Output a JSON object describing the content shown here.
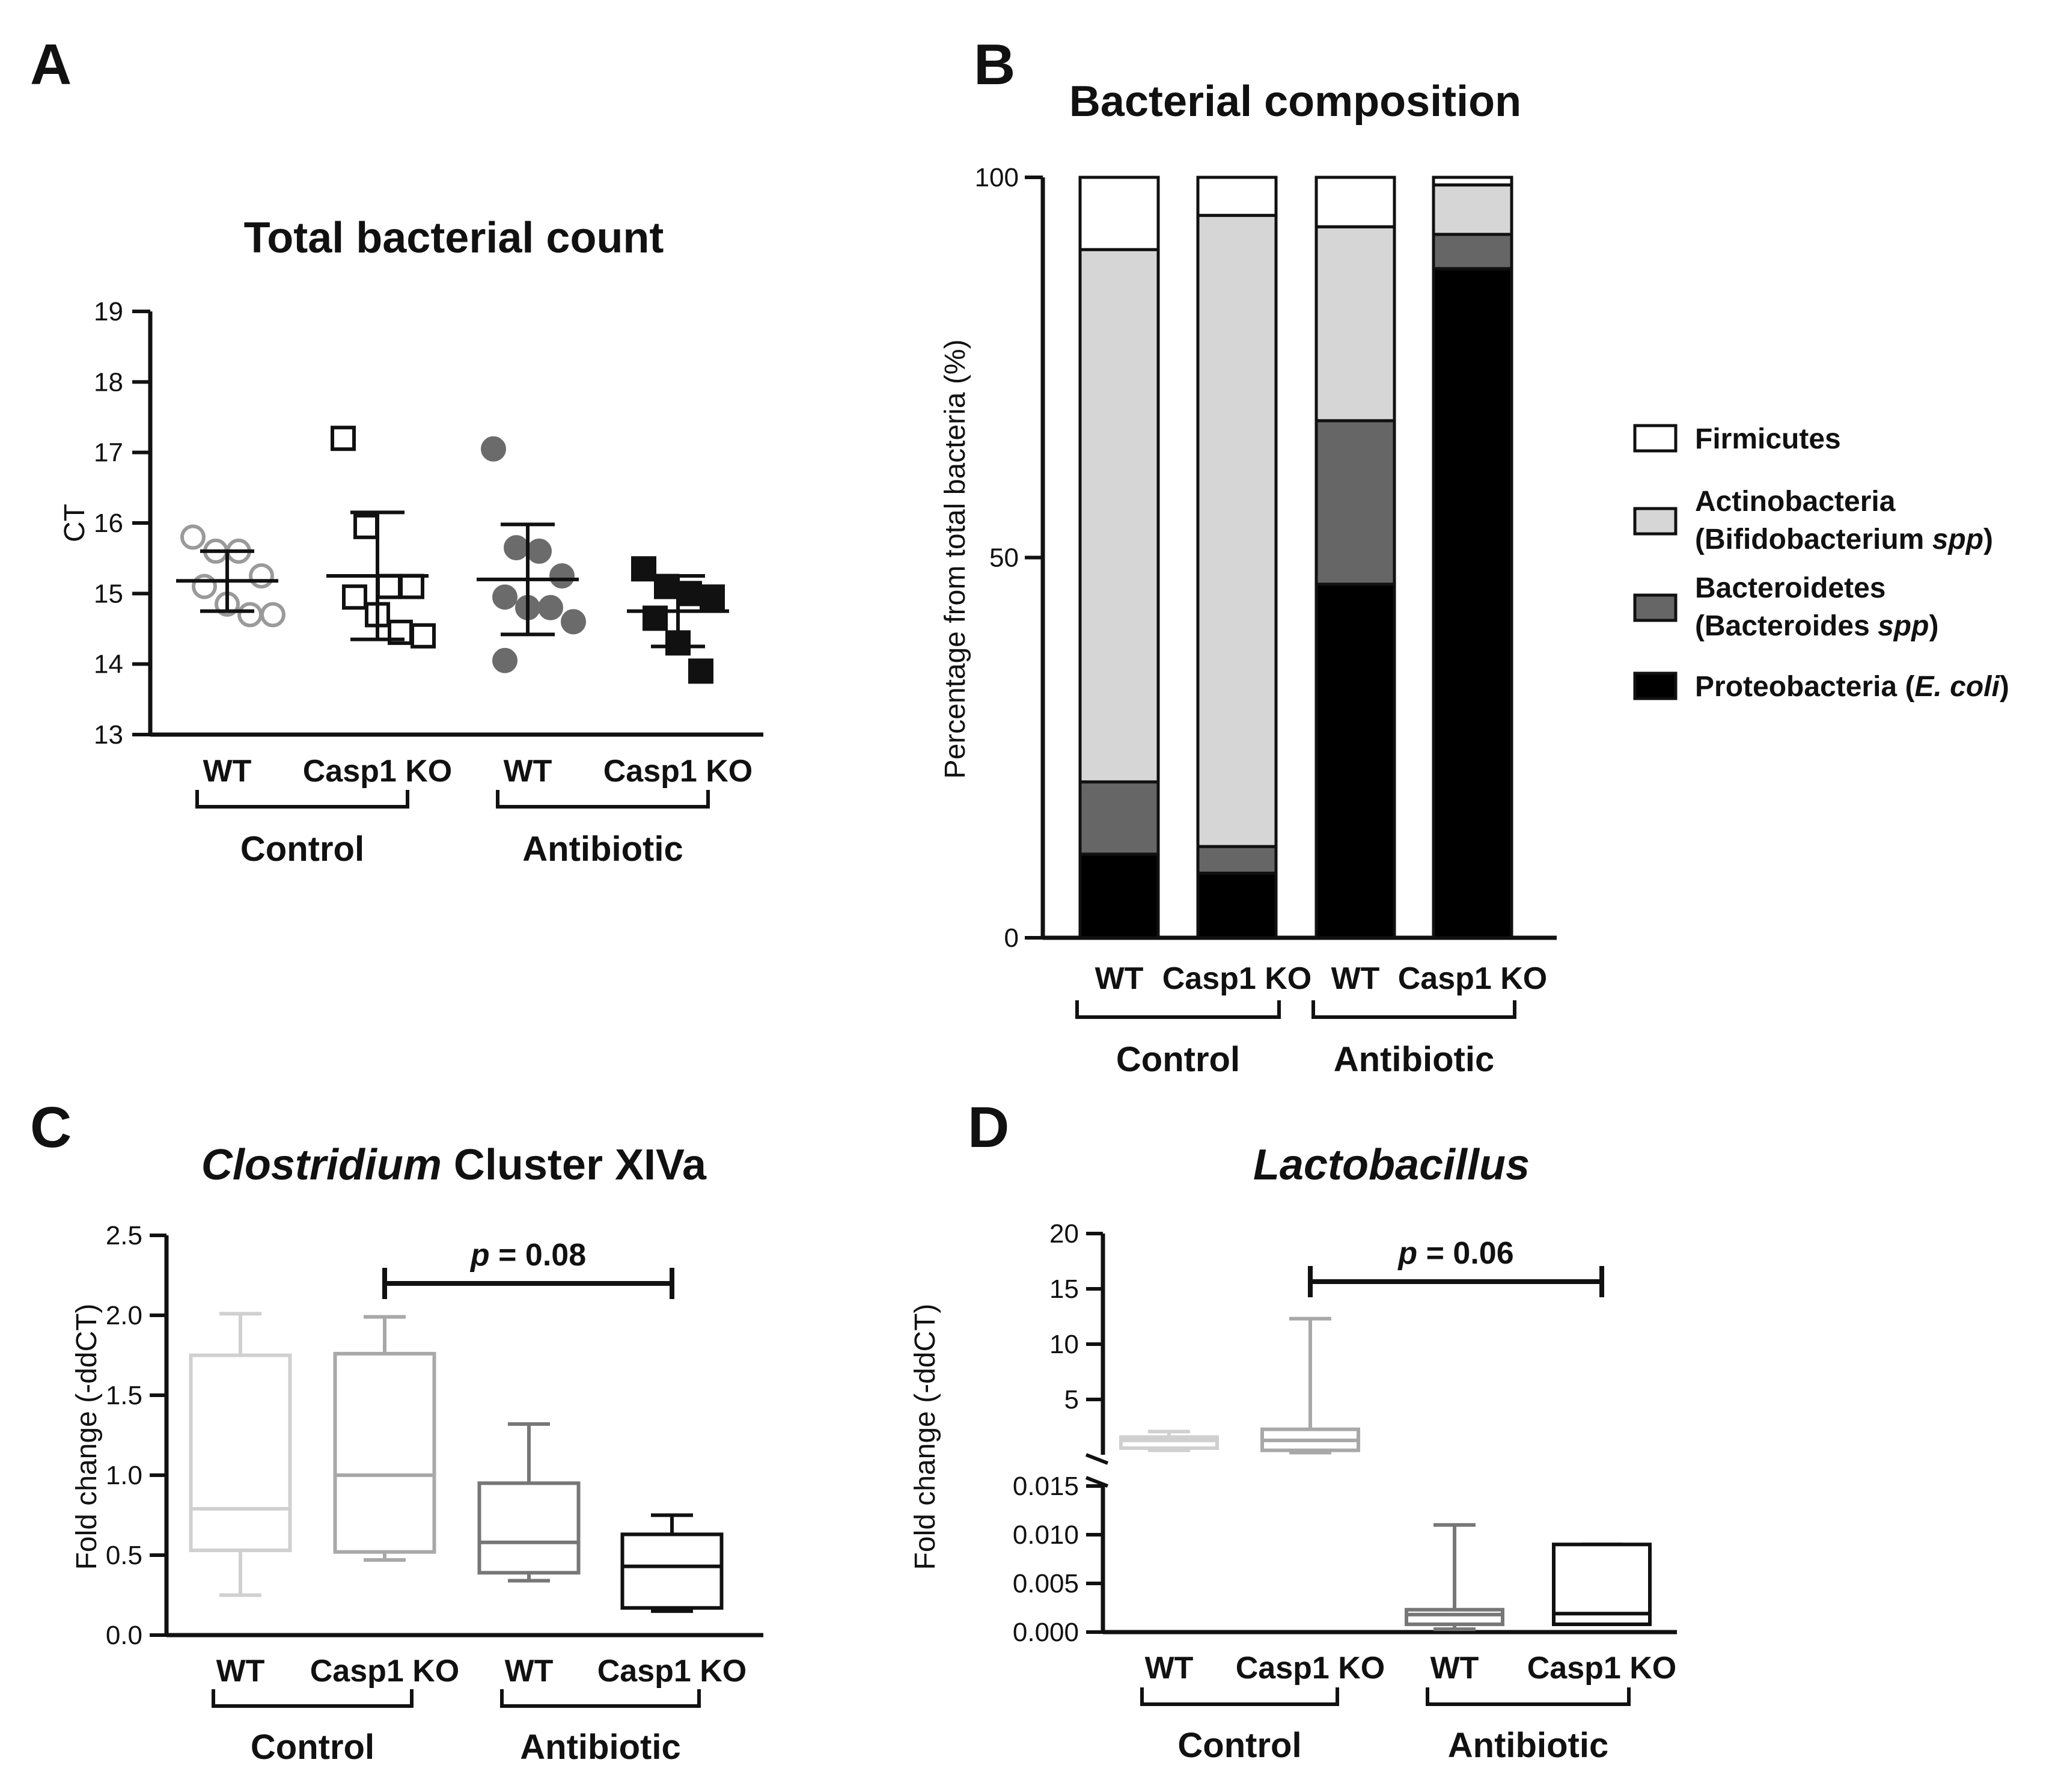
{
  "figure": {
    "panels": [
      "A",
      "B",
      "C",
      "D"
    ]
  },
  "chart_data": [
    {
      "panel": "A",
      "type": "scatter",
      "title": "Total bacterial count",
      "ylabel": "CT",
      "ylim": [
        13,
        19
      ],
      "yticks": [
        13,
        14,
        15,
        16,
        17,
        18,
        19
      ],
      "categories": [
        "WT",
        "Casp1 KO",
        "WT",
        "Casp1 KO"
      ],
      "groups": [
        {
          "label": "Control",
          "span": [
            0,
            1
          ]
        },
        {
          "label": "Antibiotic",
          "span": [
            2,
            3
          ]
        }
      ],
      "series": [
        {
          "name": "Control WT",
          "marker": "open-circle",
          "color": "#9a9a9a",
          "points": [
            15.8,
            15.6,
            15.6,
            15.25,
            15.1,
            14.85,
            14.7,
            14.7
          ],
          "mean": 15.18,
          "sd": [
            14.75,
            15.6
          ]
        },
        {
          "name": "Control Casp1 KO",
          "marker": "open-square",
          "color": "#111111",
          "points": [
            17.2,
            15.95,
            15.1,
            15.1,
            14.95,
            14.7,
            14.45,
            14.4
          ],
          "mean": 15.25,
          "sd": [
            14.35,
            16.15
          ]
        },
        {
          "name": "Antibiotic WT",
          "marker": "filled-circle",
          "color": "#6b6b6b",
          "points": [
            17.05,
            15.65,
            15.6,
            15.25,
            14.95,
            14.8,
            14.8,
            14.6,
            14.05
          ],
          "mean": 15.2,
          "sd": [
            14.42,
            15.98
          ]
        },
        {
          "name": "Antibiotic Casp1 KO",
          "marker": "filled-square",
          "color": "#111111",
          "points": [
            15.35,
            15.1,
            15.0,
            14.95,
            14.65,
            14.3,
            13.9
          ],
          "mean": 14.75,
          "sd": [
            14.25,
            15.25
          ]
        }
      ]
    },
    {
      "panel": "B",
      "type": "bar",
      "stacked": true,
      "title": "Bacterial composition",
      "ylabel": "Percentage from total bacteria (%)",
      "ylim": [
        0,
        100
      ],
      "yticks": [
        0,
        50,
        100
      ],
      "categories": [
        "WT",
        "Casp1 KO",
        "WT",
        "Casp1 KO"
      ],
      "groups": [
        {
          "label": "Control",
          "span": [
            0,
            1
          ]
        },
        {
          "label": "Antibiotic",
          "span": [
            2,
            3
          ]
        }
      ],
      "series": [
        {
          "name": "Proteobacteria (E. coli)",
          "color": "#000000",
          "values": [
            11,
            8.5,
            46.5,
            88
          ]
        },
        {
          "name": "Bacteroidetes (Bacteroides spp)",
          "color": "#666666",
          "values": [
            9.5,
            3.5,
            21.5,
            4.5
          ]
        },
        {
          "name": "Actinobacteria (Bifidobacterium spp)",
          "color": "#d6d6d6",
          "values": [
            70,
            83,
            25.5,
            6.5
          ]
        },
        {
          "name": "Firmicutes",
          "color": "#ffffff",
          "values": [
            9.5,
            5,
            6.5,
            1
          ]
        }
      ],
      "legend": [
        {
          "line1": "Firmicutes",
          "line2_pre": "",
          "line2_italic": "",
          "line2_post": "",
          "color": "#ffffff"
        },
        {
          "line1": "Actinobacteria",
          "line2_pre": "(Bifidobacterium ",
          "line2_italic": "spp",
          "line2_post": ")",
          "color": "#d6d6d6"
        },
        {
          "line1": "Bacteroidetes",
          "line2_pre": "(Bacteroides ",
          "line2_italic": "spp",
          "line2_post": ")",
          "color": "#666666"
        },
        {
          "line1_pre": "Proteobacteria (",
          "line1_italic": "E. coli",
          "line1_post": ")",
          "color": "#000000"
        }
      ],
      "legend_position": "right"
    },
    {
      "panel": "C",
      "type": "box",
      "title_italic": "Clostridium",
      "title_rest": " Cluster XIVa",
      "ylabel": "Fold change (-ddCT)",
      "ylim": [
        0,
        2.5
      ],
      "yticks": [
        "0.0",
        "0.5",
        "1.0",
        "1.5",
        "2.0",
        "2.5"
      ],
      "categories": [
        "WT",
        "Casp1 KO",
        "WT",
        "Casp1 KO"
      ],
      "groups": [
        {
          "label": "Control",
          "span": [
            0,
            1
          ]
        },
        {
          "label": "Antibiotic",
          "span": [
            2,
            3
          ]
        }
      ],
      "boxes": [
        {
          "min": 0.25,
          "q1": 0.53,
          "median": 0.79,
          "q3": 1.75,
          "max": 2.01,
          "color": "#d0d0d0"
        },
        {
          "min": 0.47,
          "q1": 0.52,
          "median": 1.0,
          "q3": 1.76,
          "max": 1.99,
          "color": "#a8a8a8"
        },
        {
          "min": 0.34,
          "q1": 0.39,
          "median": 0.58,
          "q3": 0.95,
          "max": 1.32,
          "color": "#777777"
        },
        {
          "min": 0.15,
          "q1": 0.17,
          "median": 0.43,
          "q3": 0.63,
          "max": 0.75,
          "color": "#111111"
        }
      ],
      "annotation": {
        "italic": "p",
        "text": " = 0.08",
        "from": 1,
        "to": 3
      }
    },
    {
      "panel": "D",
      "type": "box",
      "title_italic": "Lactobacillus",
      "ylabel": "Fold change (-ddCT)",
      "broken_axis": true,
      "upper_ylim": [
        0,
        20
      ],
      "upper_yticks": [
        "5",
        "10",
        "15",
        "20"
      ],
      "lower_ylim": [
        0,
        0.015
      ],
      "lower_yticks": [
        "0.000",
        "0.005",
        "0.010",
        "0.015"
      ],
      "categories": [
        "WT",
        "Casp1 KO",
        "WT",
        "Casp1 KO"
      ],
      "groups": [
        {
          "label": "Control",
          "span": [
            0,
            1
          ]
        },
        {
          "label": "Antibiotic",
          "span": [
            2,
            3
          ]
        }
      ],
      "boxes": [
        {
          "segment": "upper",
          "min": 0.4,
          "q1": 0.6,
          "median": 1.3,
          "q3": 1.6,
          "max": 2.1,
          "color": "#d0d0d0"
        },
        {
          "segment": "upper",
          "min": 0.2,
          "q1": 0.4,
          "median": 1.3,
          "q3": 2.3,
          "max": 12.3,
          "color": "#a8a8a8"
        },
        {
          "segment": "lower",
          "min": 0.0003,
          "q1": 0.0008,
          "median": 0.0018,
          "q3": 0.0023,
          "max": 0.011,
          "color": "#777777"
        },
        {
          "segment": "lower",
          "min": 0.0008,
          "q1": 0.0008,
          "median": 0.0019,
          "q3": 0.009,
          "max": 0.009,
          "color": "#111111"
        }
      ],
      "annotation": {
        "italic": "p",
        "text": " = 0.06",
        "from": 1,
        "to": 3
      }
    }
  ]
}
